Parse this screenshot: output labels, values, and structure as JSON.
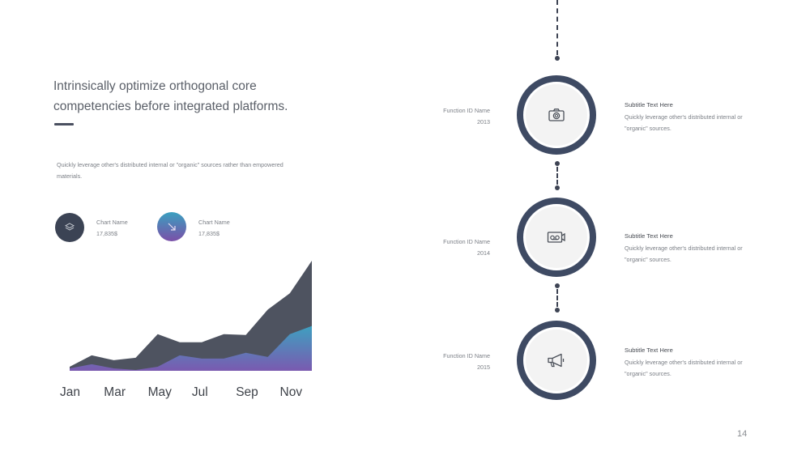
{
  "headline": "Intrinsically optimize orthogonal core competencies before integrated platforms.",
  "description": "Quickly leverage  other's distributed internal or \"organic\" sources rather than empowered  materials.",
  "legend": [
    {
      "name": "Chart Name",
      "value": "17,835$",
      "icon": "layers-icon",
      "color": "#3b4354"
    },
    {
      "name": "Chart Name",
      "value": "17,835$",
      "icon": "arrow-down-right-icon",
      "gradient": [
        "#3aa0c0",
        "#7b4fa8"
      ]
    }
  ],
  "chart_data": {
    "type": "area",
    "x_tick_labels": [
      "Jan",
      "Mar",
      "May",
      "Jul",
      "Sep",
      "Nov"
    ],
    "series": [
      {
        "color": "#4e5360",
        "values": [
          5,
          19,
          13,
          16,
          45,
          35,
          35,
          45,
          44,
          75,
          95,
          135
        ]
      },
      {
        "colors": [
          "#7a5ab0",
          "#3ea0c0"
        ],
        "values": [
          3,
          8,
          3,
          1,
          5,
          19,
          15,
          15,
          22,
          17,
          45,
          55
        ]
      }
    ]
  },
  "timeline": [
    {
      "function": "Function ID Name",
      "year": "2013",
      "icon": "camera-icon",
      "subtitle": "Subtitle  Text Here",
      "text": "Quickly leverage  other's distributed internal or \"organic\" sources."
    },
    {
      "function": "Function ID Name",
      "year": "2014",
      "icon": "cassette-recorder-icon",
      "subtitle": "Subtitle  Text Here",
      "text": "Quickly leverage  other's distributed internal or \"organic\" sources."
    },
    {
      "function": "Function ID Name",
      "year": "2015",
      "icon": "megaphone-icon",
      "subtitle": "Subtitle  Text Here",
      "text": "Quickly leverage  other's distributed internal or \"organic\" sources."
    }
  ],
  "page_number": "14"
}
